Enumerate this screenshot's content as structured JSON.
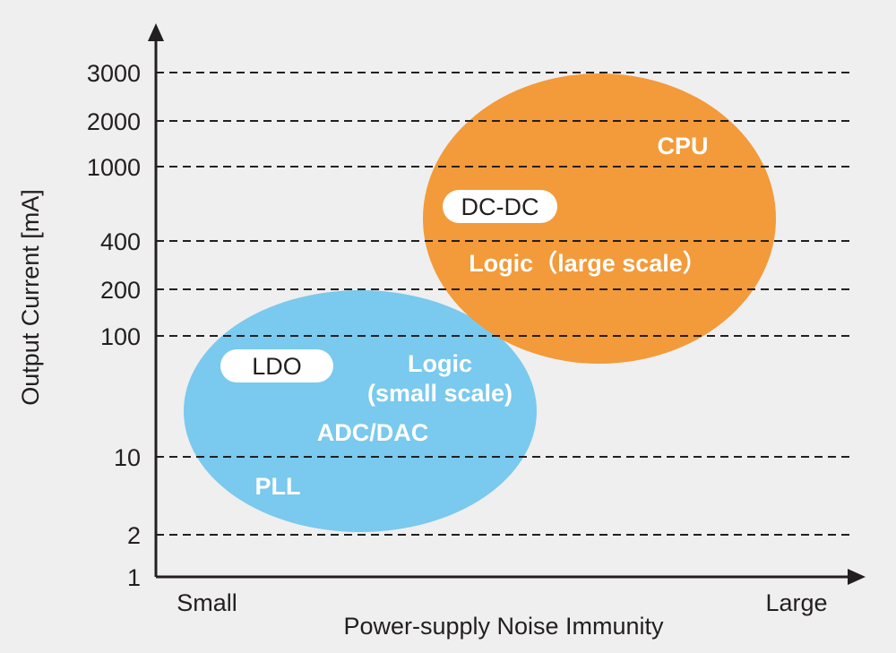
{
  "colors": {
    "background": "#efefef",
    "axis": "#231f20",
    "gridline": "#231f20",
    "blue_region": "#7ac9ee",
    "orange_region": "#f39a3a",
    "label_on_region": "#ffffff",
    "tag_background": "#ffffff",
    "tag_text": "#231f20",
    "text": "#231f20"
  },
  "axes": {
    "y_title": "Output Current [mA]",
    "x_title": "Power-supply Noise Immunity",
    "x_low_label": "Small",
    "x_high_label": "Large",
    "y_ticks": [
      "3000",
      "2000",
      "1000",
      "400",
      "200",
      "100",
      "10",
      "2",
      "1"
    ]
  },
  "regions": {
    "ldo": {
      "tag": "LDO",
      "labels": {
        "logic": "Logic",
        "logic_scale": "(small scale)",
        "adc_dac": "ADC/DAC",
        "pll": "PLL"
      }
    },
    "dcdc": {
      "tag": "DC-DC",
      "labels": {
        "cpu": "CPU",
        "logic_large": "Logic（large scale）"
      }
    }
  }
}
